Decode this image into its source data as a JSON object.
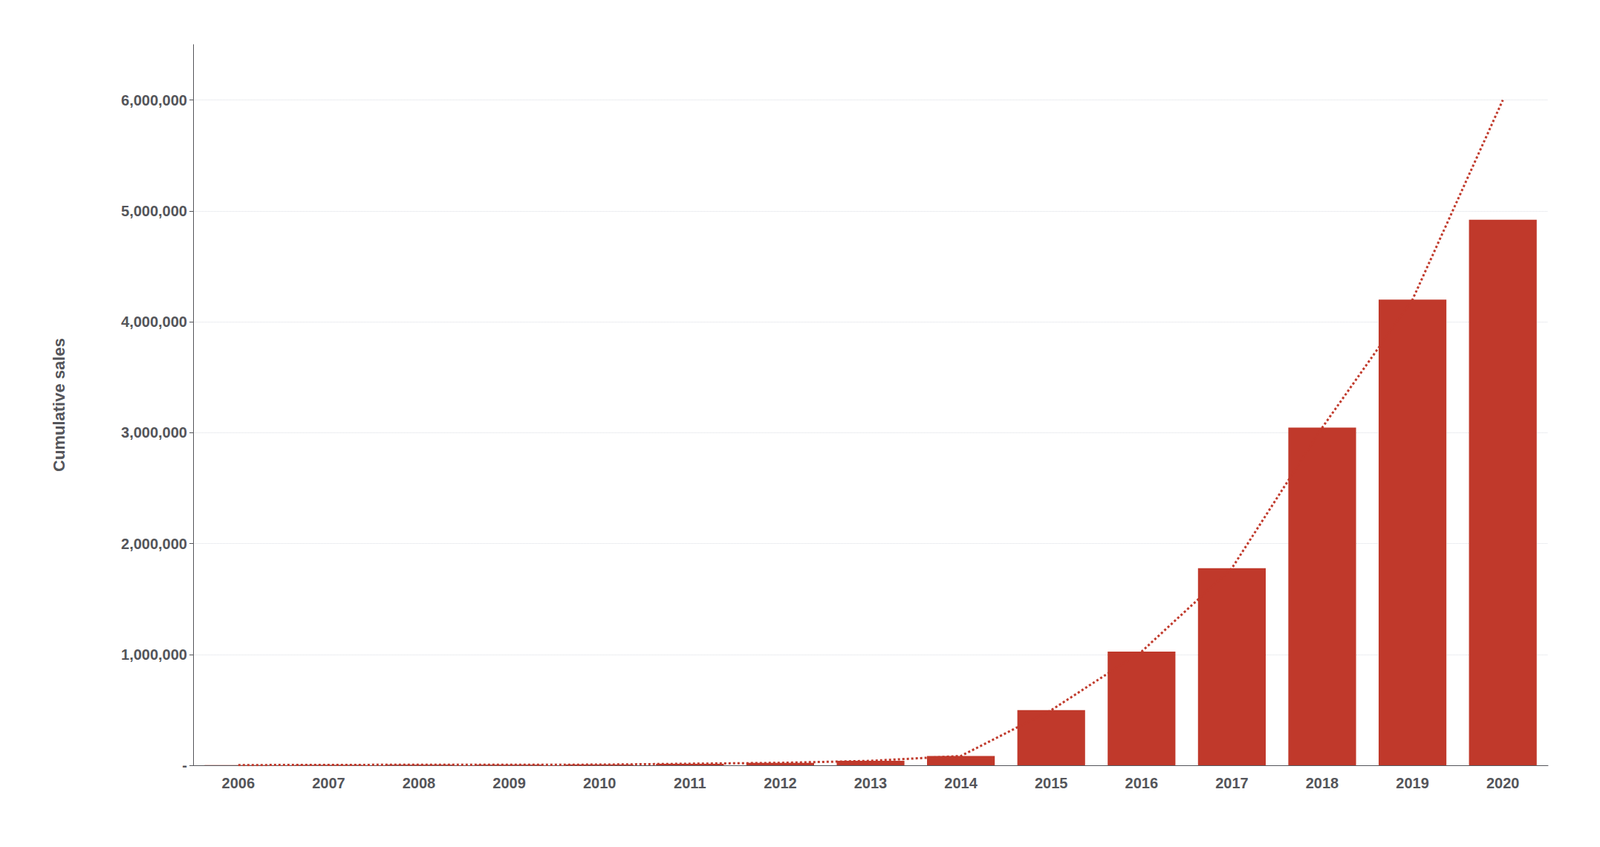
{
  "chart_data": {
    "type": "bar",
    "ylabel": "Cumulative sales",
    "categories": [
      "2006",
      "2007",
      "2008",
      "2009",
      "2010",
      "2011",
      "2012",
      "2013",
      "2014",
      "2015",
      "2016",
      "2017",
      "2018",
      "2019",
      "2020"
    ],
    "series": [
      {
        "type": "bar",
        "color": "#C0392B",
        "values": [
          2000,
          3500,
          5000,
          5200,
          6000,
          14000,
          22000,
          40000,
          84000,
          497000,
          1025000,
          1777000,
          3045000,
          4200000,
          4920000
        ]
      },
      {
        "type": "line",
        "color": "#C0392B",
        "line_style": "dotted",
        "values": [
          2000,
          3500,
          5000,
          5200,
          6000,
          14000,
          22000,
          40000,
          84000,
          497000,
          1025000,
          1777000,
          3045000,
          4200000,
          6000000
        ]
      }
    ],
    "ylim": [
      0,
      6500000
    ],
    "yticks": [
      {
        "value": 0,
        "label": "-"
      },
      {
        "value": 1000000,
        "label": "1,000,000"
      },
      {
        "value": 2000000,
        "label": "2,000,000"
      },
      {
        "value": 3000000,
        "label": "3,000,000"
      },
      {
        "value": 4000000,
        "label": "4,000,000"
      },
      {
        "value": 5000000,
        "label": "5,000,000"
      },
      {
        "value": 6000000,
        "label": "6,000,000"
      }
    ],
    "grid": true
  }
}
